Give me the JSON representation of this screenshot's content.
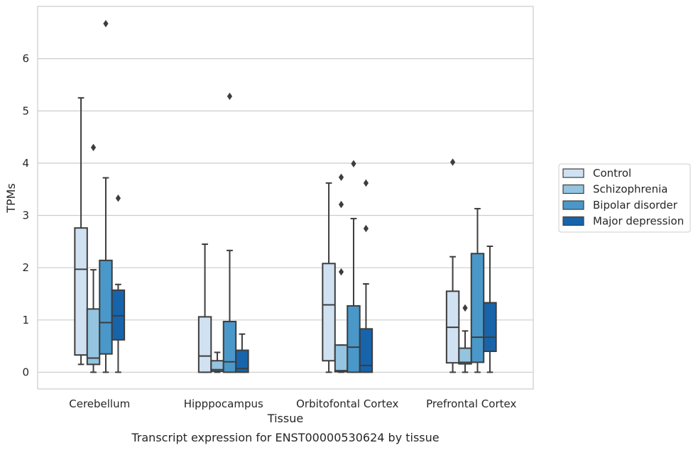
{
  "caption": "Transcript expression for ENST00000530624 by tissue",
  "chart_data": {
    "type": "box",
    "title": "",
    "xlabel": "Tissue",
    "ylabel": "TPMs",
    "ylim": [
      -0.32,
      7.0
    ],
    "yticks": [
      0,
      1,
      2,
      3,
      4,
      5,
      6
    ],
    "grid": true,
    "legend_position": "right",
    "categories": [
      "Cerebellum",
      "Hipppocampus",
      "Orbitofontal Cortex",
      "Prefrontal Cortex"
    ],
    "series": [
      {
        "name": "Control",
        "color": "#d0e1f2",
        "boxes": [
          {
            "q1": 0.33,
            "median": 1.97,
            "q3": 2.76,
            "whisker_low": 0.15,
            "whisker_high": 5.25,
            "outliers": []
          },
          {
            "q1": 0.0,
            "median": 0.31,
            "q3": 1.06,
            "whisker_low": 0.0,
            "whisker_high": 2.45,
            "outliers": []
          },
          {
            "q1": 0.22,
            "median": 1.29,
            "q3": 2.08,
            "whisker_low": 0.0,
            "whisker_high": 3.62,
            "outliers": []
          },
          {
            "q1": 0.18,
            "median": 0.86,
            "q3": 1.55,
            "whisker_low": 0.0,
            "whisker_high": 2.21,
            "outliers": [
              4.02
            ]
          }
        ]
      },
      {
        "name": "Schizophrenia",
        "color": "#94c4df",
        "boxes": [
          {
            "q1": 0.15,
            "median": 0.27,
            "q3": 1.21,
            "whisker_low": 0.0,
            "whisker_high": 1.96,
            "outliers": [
              4.3
            ]
          },
          {
            "q1": 0.02,
            "median": 0.05,
            "q3": 0.22,
            "whisker_low": 0.0,
            "whisker_high": 0.38,
            "outliers": []
          },
          {
            "q1": 0.01,
            "median": 0.03,
            "q3": 0.52,
            "whisker_low": 0.0,
            "whisker_high": 0.52,
            "outliers": [
              1.92,
              3.21,
              3.73
            ]
          },
          {
            "q1": 0.16,
            "median": 0.19,
            "q3": 0.46,
            "whisker_low": 0.0,
            "whisker_high": 0.79,
            "outliers": [
              1.23
            ]
          }
        ]
      },
      {
        "name": "Bipolar disorder",
        "color": "#4a98c9",
        "boxes": [
          {
            "q1": 0.35,
            "median": 0.95,
            "q3": 2.14,
            "whisker_low": 0.0,
            "whisker_high": 3.72,
            "outliers": [
              6.67
            ]
          },
          {
            "q1": 0.0,
            "median": 0.2,
            "q3": 0.97,
            "whisker_low": 0.0,
            "whisker_high": 2.33,
            "outliers": [
              5.28
            ]
          },
          {
            "q1": 0.0,
            "median": 0.48,
            "q3": 1.27,
            "whisker_low": 0.0,
            "whisker_high": 2.94,
            "outliers": [
              3.99
            ]
          },
          {
            "q1": 0.19,
            "median": 0.67,
            "q3": 2.27,
            "whisker_low": 0.0,
            "whisker_high": 3.13,
            "outliers": []
          }
        ]
      },
      {
        "name": "Major depression",
        "color": "#1764ab",
        "boxes": [
          {
            "q1": 0.62,
            "median": 1.08,
            "q3": 1.57,
            "whisker_low": 0.0,
            "whisker_high": 1.68,
            "outliers": [
              3.33
            ]
          },
          {
            "q1": 0.0,
            "median": 0.07,
            "q3": 0.42,
            "whisker_low": 0.0,
            "whisker_high": 0.73,
            "outliers": []
          },
          {
            "q1": 0.0,
            "median": 0.13,
            "q3": 0.83,
            "whisker_low": 0.0,
            "whisker_high": 1.69,
            "outliers": [
              2.75,
              3.62
            ]
          },
          {
            "q1": 0.4,
            "median": 0.67,
            "q3": 1.33,
            "whisker_low": 0.0,
            "whisker_high": 2.41,
            "outliers": []
          }
        ]
      }
    ]
  }
}
